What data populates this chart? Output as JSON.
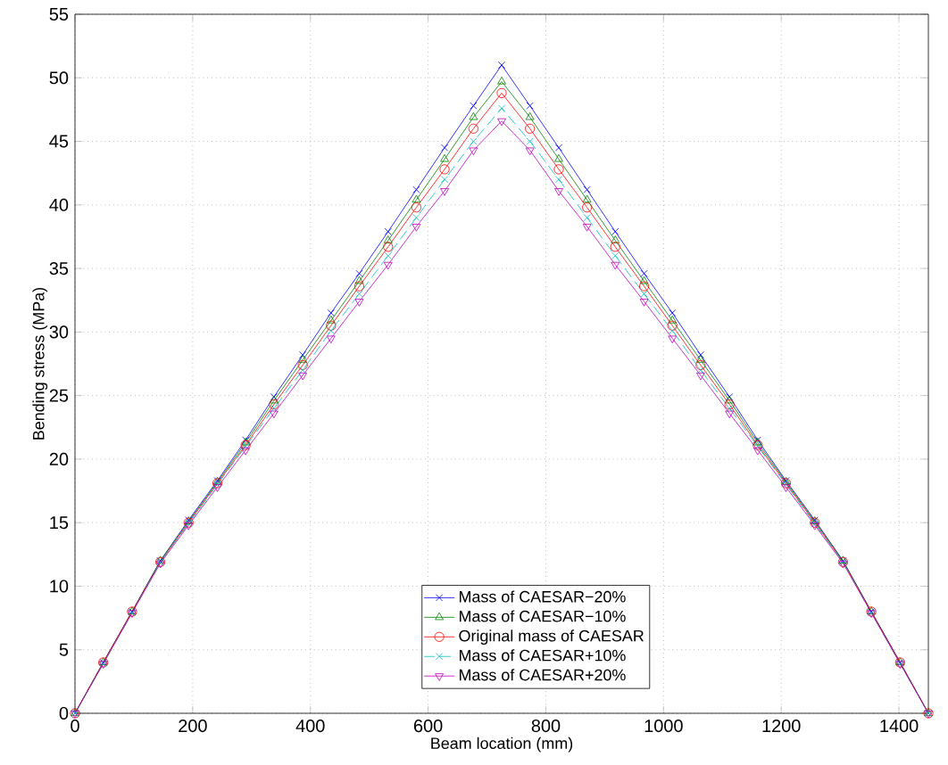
{
  "chart_data": {
    "type": "line",
    "xlabel": "Beam location (mm)",
    "ylabel": "Bending stress (MPa)",
    "x": [
      0,
      48,
      97,
      145,
      193,
      242,
      290,
      338,
      387,
      435,
      483,
      532,
      580,
      628,
      677,
      725,
      773,
      822,
      870,
      918,
      967,
      1015,
      1063,
      1112,
      1160,
      1208,
      1257,
      1305,
      1353,
      1402,
      1450
    ],
    "xlim": [
      0,
      1450
    ],
    "xticks": [
      0,
      200,
      400,
      600,
      800,
      1000,
      1200,
      1400
    ],
    "ylim": [
      0,
      55
    ],
    "yticks": [
      0,
      5,
      10,
      15,
      20,
      25,
      30,
      35,
      40,
      45,
      50,
      55
    ],
    "grid": true,
    "legend": "bottom",
    "series": [
      {
        "name": "Mass of CAESAR−20%",
        "color": "#0000ff",
        "marker": "cross",
        "line_style": "solid",
        "values": [
          0,
          4,
          8,
          12,
          15.2,
          18.3,
          21.5,
          24.9,
          28.2,
          31.5,
          34.6,
          37.9,
          41.2,
          44.5,
          47.8,
          51,
          47.8,
          44.5,
          41.2,
          37.9,
          34.6,
          31.5,
          28.2,
          24.9,
          21.5,
          18.3,
          15.2,
          12,
          8,
          4,
          0
        ]
      },
      {
        "name": "Mass of CAESAR−10%",
        "color": "#008000",
        "marker": "triangle",
        "line_style": "solid",
        "values": [
          0,
          4,
          8,
          12,
          15.1,
          18.2,
          21.3,
          24.6,
          27.8,
          30.9,
          34,
          37.2,
          40.4,
          43.6,
          46.9,
          49.7,
          46.9,
          43.6,
          40.4,
          37.2,
          34,
          30.9,
          27.8,
          24.6,
          21.3,
          18.2,
          15.1,
          12,
          8,
          4,
          0
        ]
      },
      {
        "name": "Original mass of CAESAR",
        "color": "#ff0000",
        "marker": "circle",
        "line_style": "solid",
        "values": [
          0,
          4,
          8,
          11.9,
          15,
          18.1,
          21.1,
          24.3,
          27.4,
          30.5,
          33.6,
          36.7,
          39.8,
          42.8,
          46,
          48.8,
          46,
          42.8,
          39.8,
          36.7,
          33.6,
          30.5,
          27.4,
          24.3,
          21.1,
          18.1,
          15,
          11.9,
          8,
          4,
          0
        ]
      },
      {
        "name": "Mass of CAESAR+10%",
        "color": "#00bfbf",
        "marker": "cross",
        "line_style": "dashed",
        "values": [
          0,
          3.9,
          7.9,
          11.9,
          14.9,
          18,
          21,
          24,
          27,
          30.1,
          33,
          36,
          39,
          42,
          45,
          47.6,
          45,
          42,
          39,
          36,
          33,
          30.1,
          27,
          24,
          21,
          18,
          14.9,
          11.9,
          7.9,
          3.9,
          0
        ]
      },
      {
        "name": "Mass of CAESAR+20%",
        "color": "#bf00bf",
        "marker": "triangle_down",
        "line_style": "solid",
        "values": [
          0,
          3.9,
          7.9,
          11.8,
          14.8,
          17.8,
          20.7,
          23.6,
          26.6,
          29.5,
          32.4,
          35.3,
          38.3,
          41.1,
          44.3,
          46.6,
          44.3,
          41.1,
          38.3,
          35.3,
          32.4,
          29.5,
          26.6,
          23.6,
          20.7,
          17.8,
          14.8,
          11.8,
          7.9,
          3.9,
          0
        ]
      }
    ]
  }
}
